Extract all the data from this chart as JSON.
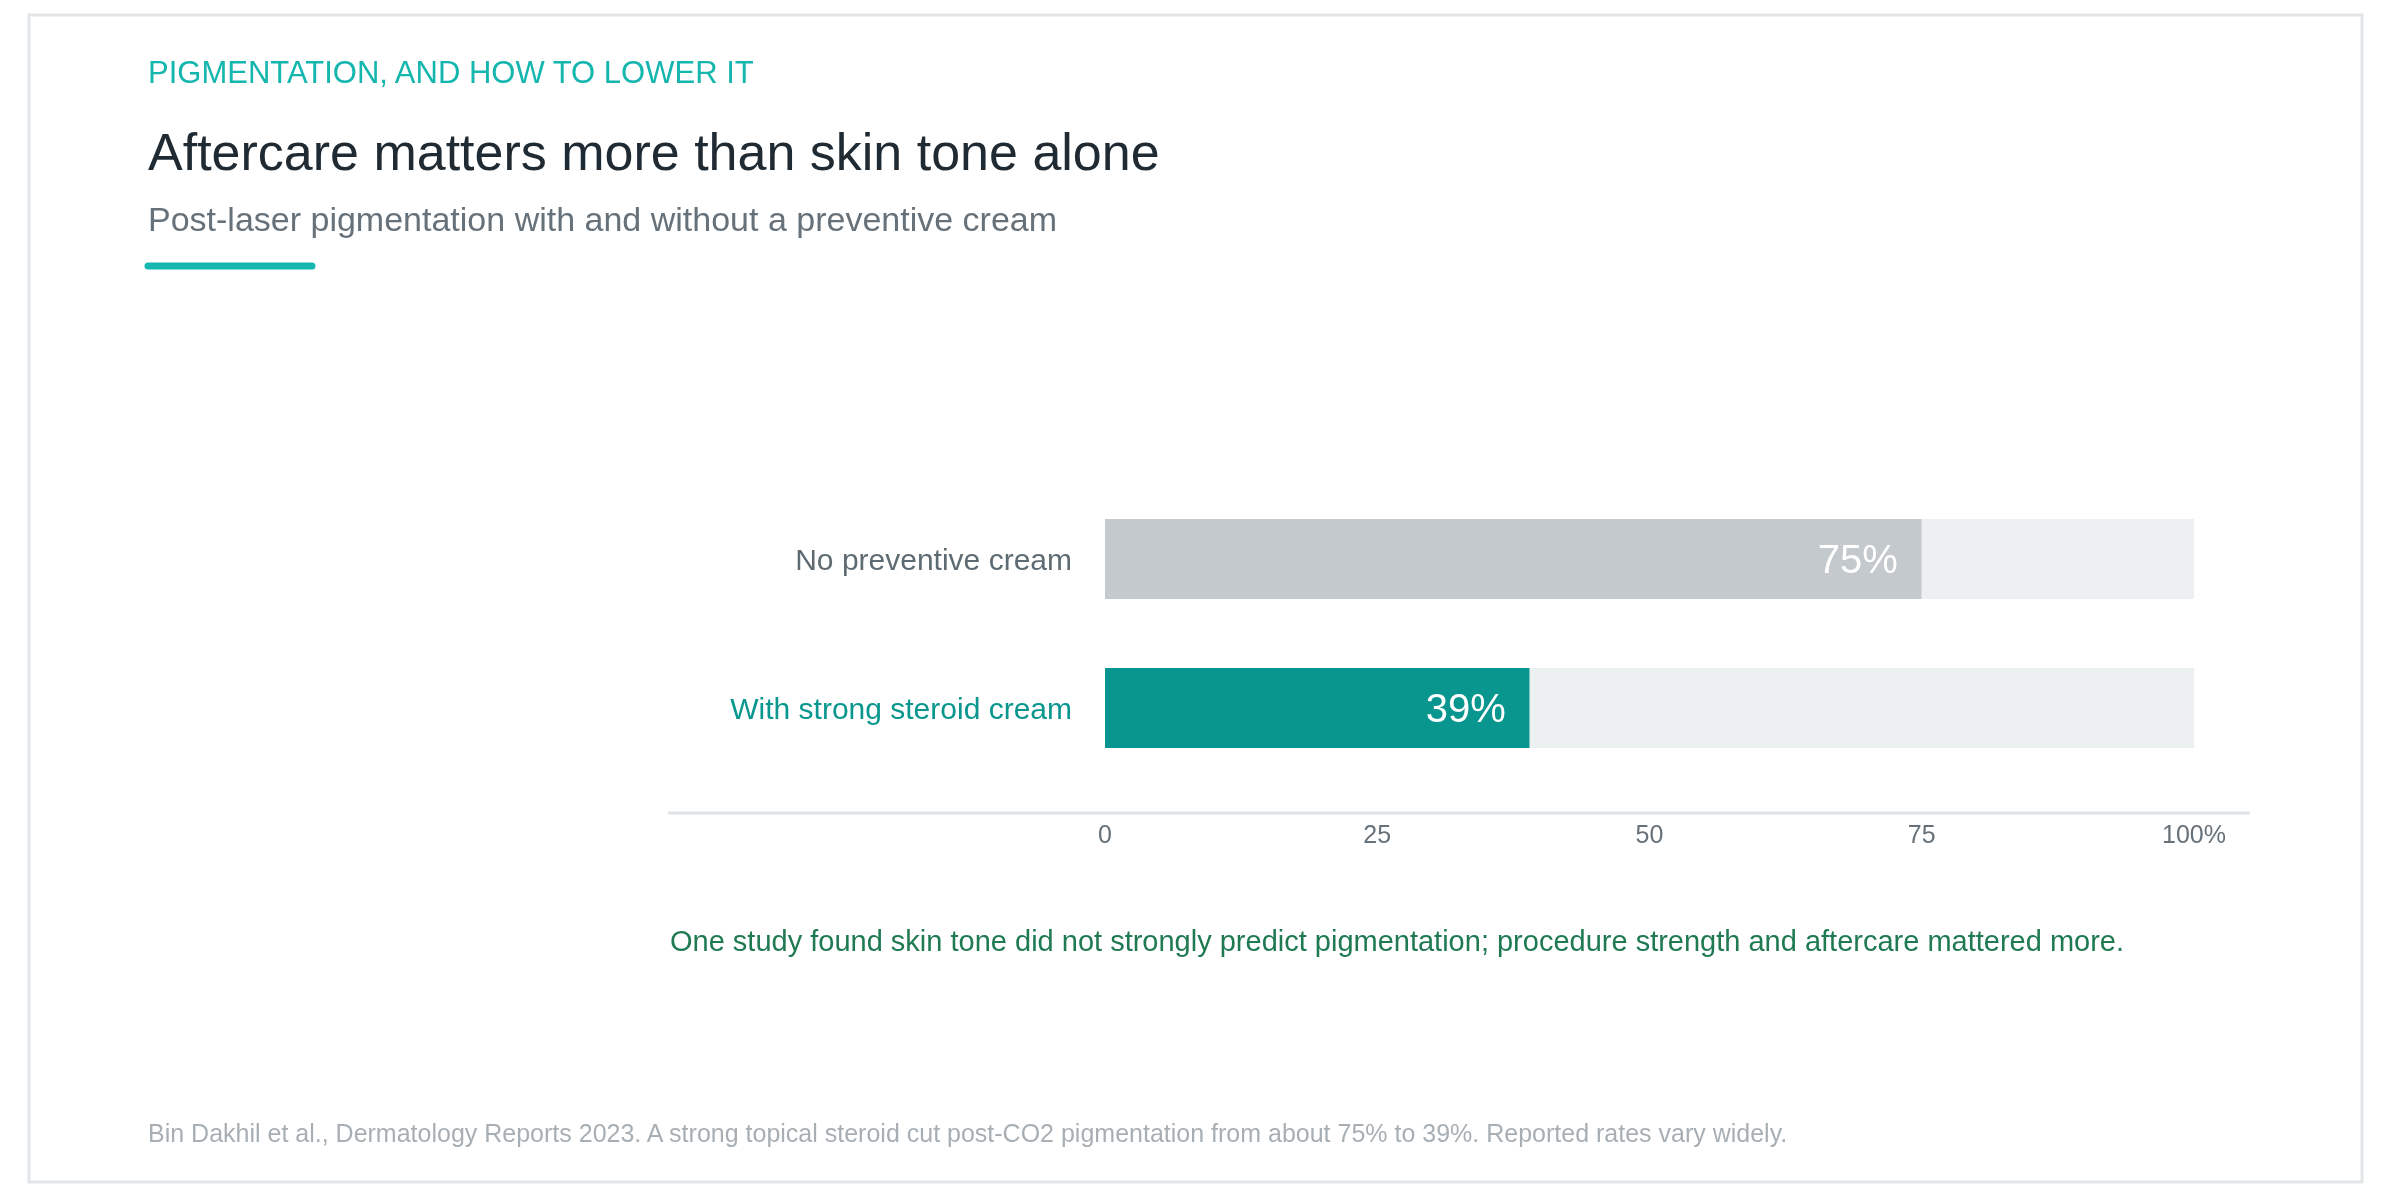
{
  "chart_data": {
    "type": "bar",
    "orientation": "horizontal",
    "stacked": true,
    "title": "Aftercare matters more than skin tone alone",
    "subtitle": "Post-laser pigmentation with and without a preventive cream",
    "categories": [
      "No preventive cream",
      "With strong steroid cream"
    ],
    "series": [
      {
        "values": [
          75,
          39
        ],
        "colors": [
          "#c3c9cc",
          "#08968e"
        ],
        "value_labels": [
          "75%",
          "39%"
        ]
      },
      {
        "values": [
          25,
          61
        ],
        "color": "#edf0f1"
      }
    ],
    "xlim": [
      0,
      100
    ],
    "xticks": [
      0,
      25,
      50,
      75,
      {
        "value": 100,
        "label": "100%"
      }
    ],
    "annotations": [
      "PIGMENTATION, AND HOW TO LOWER IT",
      "One study found skin tone did not strongly predict pigmentation; procedure strength and aftercare mattered more.",
      "Bin Dakhil et al., Dermatology Reports 2023. A strong topical steroid cut post-CO2 pigmentation from about 75% to 39%. Reported rates vary widely."
    ]
  }
}
